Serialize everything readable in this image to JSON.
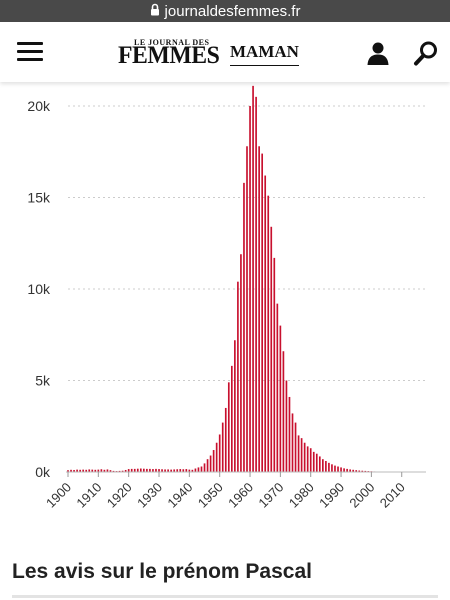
{
  "browser": {
    "url": "journaldesfemmes.fr"
  },
  "header": {
    "logo_small": "LE JOURNAL DES",
    "logo_big": "FEMMES",
    "logo_section": "MAMAN"
  },
  "icons": {
    "menu": "hamburger-icon",
    "user": "user-icon",
    "search": "search-icon"
  },
  "colors": {
    "bar": "#c8102e",
    "grid": "#cccccc",
    "axis": "#333333"
  },
  "chart_data": {
    "type": "bar",
    "title": "",
    "xlabel": "",
    "ylabel": "",
    "grid": true,
    "xlim": [
      1900,
      2018
    ],
    "ylim": [
      0,
      20000
    ],
    "yticks": [
      0,
      5000,
      10000,
      15000,
      20000
    ],
    "ytick_labels": [
      "0k",
      "5k",
      "10k",
      "15k",
      "20k"
    ],
    "xticks": [
      1900,
      1910,
      1920,
      1930,
      1940,
      1950,
      1960,
      1970,
      1980,
      1990,
      2000,
      2010
    ],
    "x": [
      1900,
      1901,
      1902,
      1903,
      1904,
      1905,
      1906,
      1907,
      1908,
      1909,
      1910,
      1911,
      1912,
      1913,
      1914,
      1915,
      1916,
      1917,
      1918,
      1919,
      1920,
      1921,
      1922,
      1923,
      1924,
      1925,
      1926,
      1927,
      1928,
      1929,
      1930,
      1931,
      1932,
      1933,
      1934,
      1935,
      1936,
      1937,
      1938,
      1939,
      1940,
      1941,
      1942,
      1943,
      1944,
      1945,
      1946,
      1947,
      1948,
      1949,
      1950,
      1951,
      1952,
      1953,
      1954,
      1955,
      1956,
      1957,
      1958,
      1959,
      1960,
      1961,
      1962,
      1963,
      1964,
      1965,
      1966,
      1967,
      1968,
      1969,
      1970,
      1971,
      1972,
      1973,
      1974,
      1975,
      1976,
      1977,
      1978,
      1979,
      1980,
      1981,
      1982,
      1983,
      1984,
      1985,
      1986,
      1987,
      1988,
      1989,
      1990,
      1991,
      1992,
      1993,
      1994,
      1995,
      1996,
      1997,
      1998,
      1999,
      2000,
      2001,
      2002,
      2003,
      2004,
      2005,
      2006,
      2007,
      2008,
      2009,
      2010,
      2011,
      2012,
      2013,
      2014,
      2015,
      2016
    ],
    "values": [
      100,
      120,
      110,
      130,
      120,
      130,
      120,
      140,
      130,
      120,
      130,
      150,
      120,
      140,
      100,
      60,
      50,
      60,
      70,
      110,
      160,
      170,
      170,
      180,
      190,
      180,
      170,
      170,
      160,
      170,
      160,
      150,
      140,
      140,
      130,
      140,
      150,
      160,
      150,
      160,
      130,
      120,
      190,
      250,
      300,
      470,
      700,
      900,
      1200,
      1600,
      2050,
      2700,
      3500,
      4900,
      5800,
      7200,
      10400,
      11900,
      15800,
      17800,
      20000,
      21100,
      20500,
      17800,
      17400,
      16200,
      15100,
      13400,
      11700,
      9200,
      8000,
      6600,
      5000,
      4100,
      3200,
      2700,
      2000,
      1850,
      1600,
      1400,
      1300,
      1100,
      1000,
      850,
      700,
      600,
      500,
      420,
      350,
      300,
      250,
      200,
      170,
      140,
      120,
      100,
      80,
      70,
      60,
      50,
      40,
      30,
      25,
      20,
      15,
      12,
      10,
      8,
      6,
      5,
      4,
      3,
      2,
      2,
      1,
      1,
      1
    ]
  },
  "section": {
    "title": "Les avis sur le prénom Pascal"
  }
}
